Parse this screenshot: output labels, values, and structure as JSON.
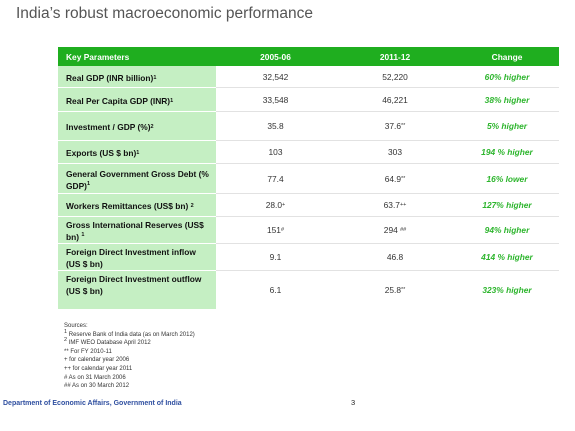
{
  "title": "India’s robust macroeconomic performance",
  "table": {
    "headers": [
      "Key Parameters",
      "2005-06",
      "2011-12",
      "Change"
    ],
    "rows": [
      {
        "param": "Real GDP (INR billion)",
        "param_sup": "1",
        "v1": "32,542",
        "v1_sup": "",
        "v2": "52,220",
        "v2_sup": "",
        "change": "60% higher"
      },
      {
        "param": "Real Per Capita GDP (INR)",
        "param_sup": "1",
        "v1": "33,548",
        "v1_sup": "",
        "v2": "46,221",
        "v2_sup": "",
        "change": "38% higher"
      },
      {
        "param": "Investment / GDP (%)",
        "param_sup": "2",
        "v1": "35.8",
        "v1_sup": "",
        "v2": "37.6",
        "v2_sup": "**",
        "change": "5% higher"
      },
      {
        "param": "Exports (US $ bn)",
        "param_sup": "1",
        "v1": "103",
        "v1_sup": "",
        "v2": "303",
        "v2_sup": "",
        "change": "194 % higher"
      },
      {
        "param": "General Government Gross Debt (% GDP)",
        "param_sup": "1",
        "v1": "77.4",
        "v1_sup": "",
        "v2": "64.9",
        "v2_sup": "**",
        "change": "16% lower"
      },
      {
        "param": "Workers Remittances (US$ bn)",
        "param_sup": "2",
        "v1": "28.0",
        "v1_sup": "+",
        "v2": "63.7",
        "v2_sup": "++",
        "change": "127% higher"
      },
      {
        "param": "Gross International Reserves (US$ bn)",
        "param_sup": "1",
        "v1": "151",
        "v1_sup": "#",
        "v2": "294",
        "v2_sup": "##",
        "change": "94% higher"
      },
      {
        "param": "Foreign Direct Investment inflow (US $ bn)",
        "param_sup": "",
        "v1": "9.1",
        "v1_sup": "",
        "v2": "46.8",
        "v2_sup": "",
        "change": "414 % higher"
      },
      {
        "param": "Foreign Direct Investment outflow (US $ bn)",
        "param_sup": "",
        "v1": "6.1",
        "v1_sup": "",
        "v2": "25.8",
        "v2_sup": "**",
        "change": "323% higher"
      }
    ]
  },
  "sources": {
    "heading": "Sources:",
    "notes": [
      {
        "sup": "1",
        "text": " Reserve Bank of India data (as on March 2012)"
      },
      {
        "sup": "2",
        "text": " IMF WEO Database April 2012"
      },
      {
        "sup": "",
        "text": "** For FY 2010-11"
      },
      {
        "sup": "",
        "text": "+ for calendar year 2006"
      },
      {
        "sup": "",
        "text": "++ for calendar year 2011"
      },
      {
        "sup": "",
        "text": "# As on 31 March 2006"
      },
      {
        "sup": "",
        "text": "## As on 30 March 2012"
      }
    ]
  },
  "footer": "Department of Economic Affairs, Government of India",
  "page_number": "3"
}
